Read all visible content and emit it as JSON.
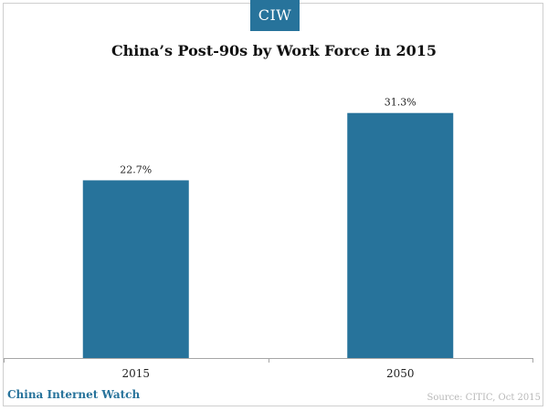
{
  "logo": {
    "text": "CIW"
  },
  "footer": {
    "brand": "China Internet Watch",
    "source": "Source: CITIC, Oct 2015"
  },
  "colors": {
    "bar": "#27739b",
    "axis": "#a6a6a6",
    "brand": "#27739b"
  },
  "chart_data": {
    "type": "bar",
    "title": "China’s Post-90s by Work Force in 2015",
    "xlabel": "",
    "ylabel": "",
    "categories": [
      "2015",
      "2050"
    ],
    "values": [
      22.7,
      31.3
    ],
    "data_labels": [
      "22.7%",
      "31.3%"
    ],
    "ylim": [
      0,
      35
    ],
    "grid": false,
    "legend": "none"
  }
}
